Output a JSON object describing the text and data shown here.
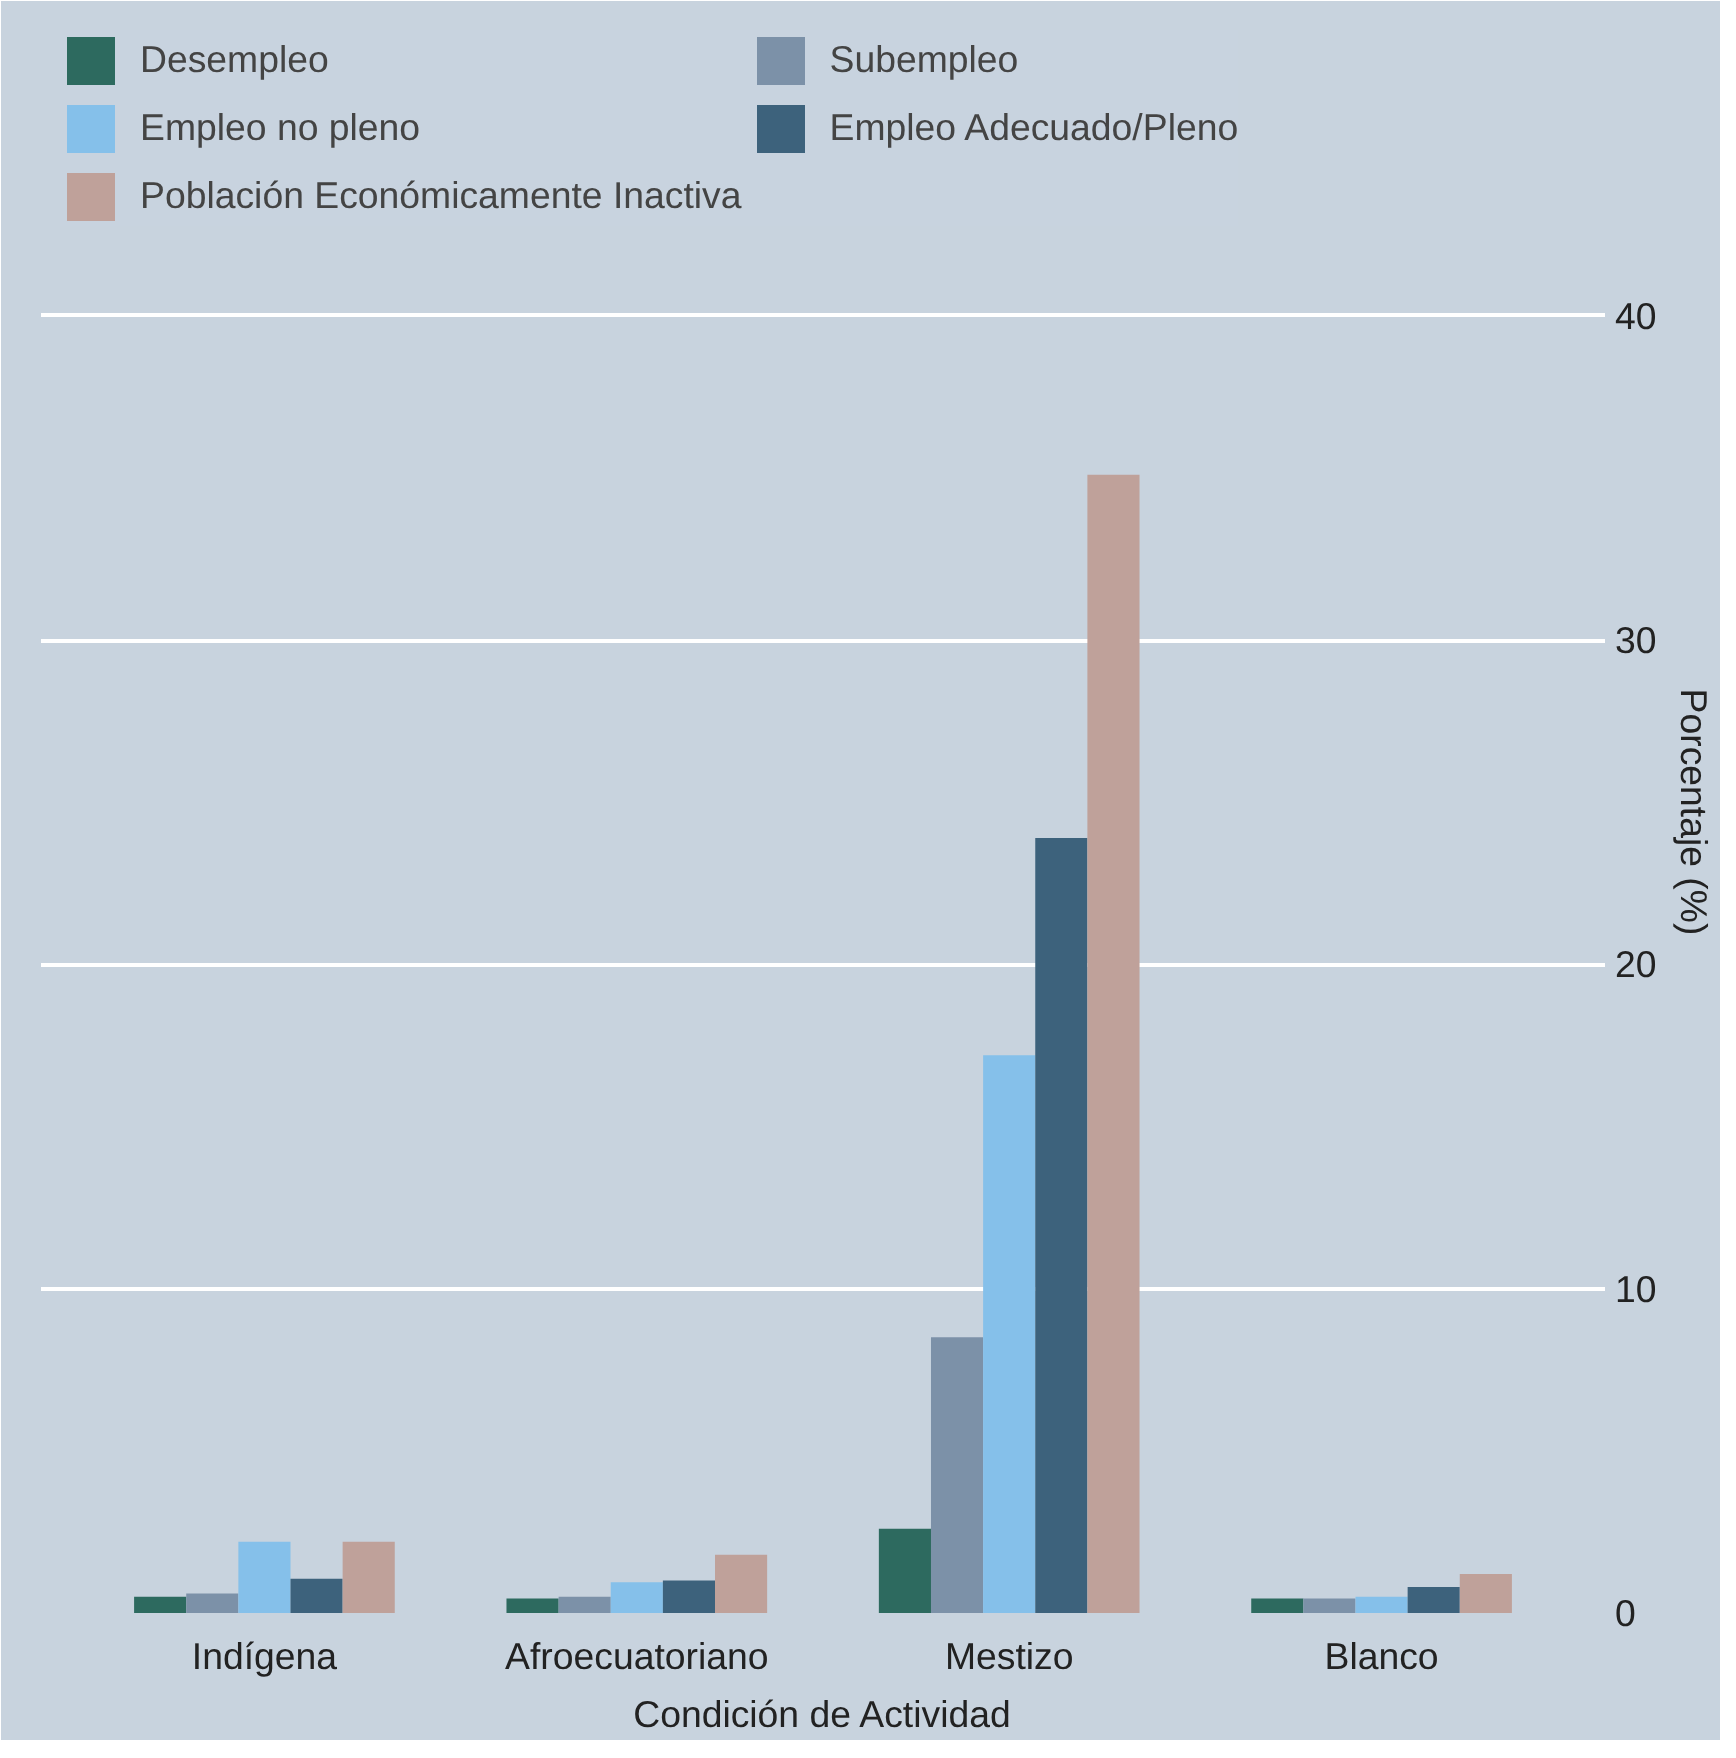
{
  "chart_data": {
    "type": "bar",
    "xlabel": "Condición de Actividad",
    "ylabel": "Porcentaje (%)",
    "categories": [
      "Indígena",
      "Afroecuatoriano",
      "Mestizo",
      "Blanco"
    ],
    "series": [
      {
        "name": "Desempleo",
        "color": "#2d6a5f",
        "values": [
          0.5,
          0.45,
          2.6,
          0.45
        ]
      },
      {
        "name": "Subempleo",
        "color": "#7c91a8",
        "values": [
          0.6,
          0.5,
          8.5,
          0.45
        ]
      },
      {
        "name": "Empleo no pleno",
        "color": "#85c0ea",
        "values": [
          2.2,
          0.95,
          17.2,
          0.5
        ]
      },
      {
        "name": "Empleo Adecuado/Pleno",
        "color": "#3d627c",
        "values": [
          1.06,
          1.0,
          23.9,
          0.8
        ]
      },
      {
        "name": "Población Económicamente Inactiva",
        "color": "#bfa19a",
        "values": [
          2.2,
          1.8,
          35.1,
          1.2
        ]
      }
    ],
    "ylim": [
      0,
      49.4
    ],
    "yticks": [
      0,
      10,
      20,
      30,
      40
    ],
    "grid": "y",
    "legend": "top left"
  }
}
